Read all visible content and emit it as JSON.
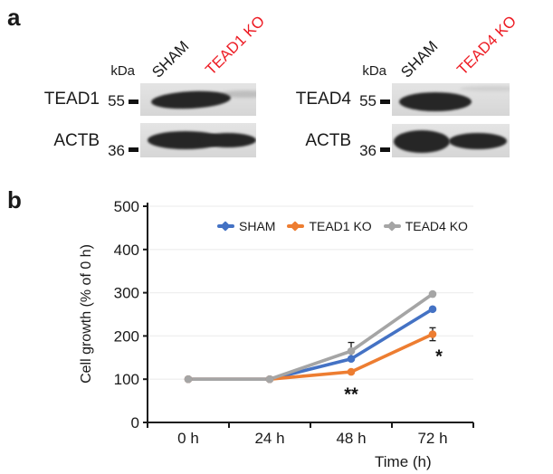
{
  "figure": {
    "panel_a_label": "a",
    "panel_b_label": "b"
  },
  "panel_a": {
    "kda_unit": "kDa",
    "ko_label_color": "#ed1c24",
    "blots": [
      {
        "lanes": [
          {
            "label": "SHAM"
          },
          {
            "label": "TEAD1 KO"
          }
        ],
        "rows": [
          {
            "protein": "TEAD1",
            "mw": "55"
          },
          {
            "protein": "ACTB",
            "mw": "36"
          }
        ]
      },
      {
        "lanes": [
          {
            "label": "SHAM"
          },
          {
            "label": "TEAD4 KO"
          }
        ],
        "rows": [
          {
            "protein": "TEAD4",
            "mw": "55"
          },
          {
            "protein": "ACTB",
            "mw": "36"
          }
        ]
      }
    ]
  },
  "chart_data": {
    "type": "line",
    "title": "",
    "categories": [
      "0 h",
      "24 h",
      "48 h",
      "72 h"
    ],
    "series": [
      {
        "name": "SHAM",
        "color": "#4472c4",
        "values": [
          100,
          100,
          147,
          262
        ]
      },
      {
        "name": "TEAD1 KO",
        "color": "#ed7d31",
        "values": [
          100,
          100,
          117,
          204
        ],
        "error_bars": [
          {
            "index": 3,
            "plus": 15,
            "minus": 15
          }
        ]
      },
      {
        "name": "TEAD4 KO",
        "color": "#a5a5a5",
        "values": [
          100,
          100,
          165,
          297
        ],
        "error_bars": [
          {
            "index": 2,
            "plus": 20,
            "minus": 20
          }
        ]
      }
    ],
    "annotations": [
      {
        "text": "**",
        "category_index": 2,
        "y": 51,
        "dx": 0
      },
      {
        "text": "*",
        "category_index": 3,
        "y": 139,
        "dx": 7
      }
    ],
    "xlabel": "Time (h)",
    "ylabel": "Cell growth (% of 0 h)",
    "yticks": [
      0,
      100,
      200,
      300,
      400,
      500
    ],
    "ylim": [
      0,
      500
    ],
    "grid": true,
    "legend_position": "top"
  }
}
